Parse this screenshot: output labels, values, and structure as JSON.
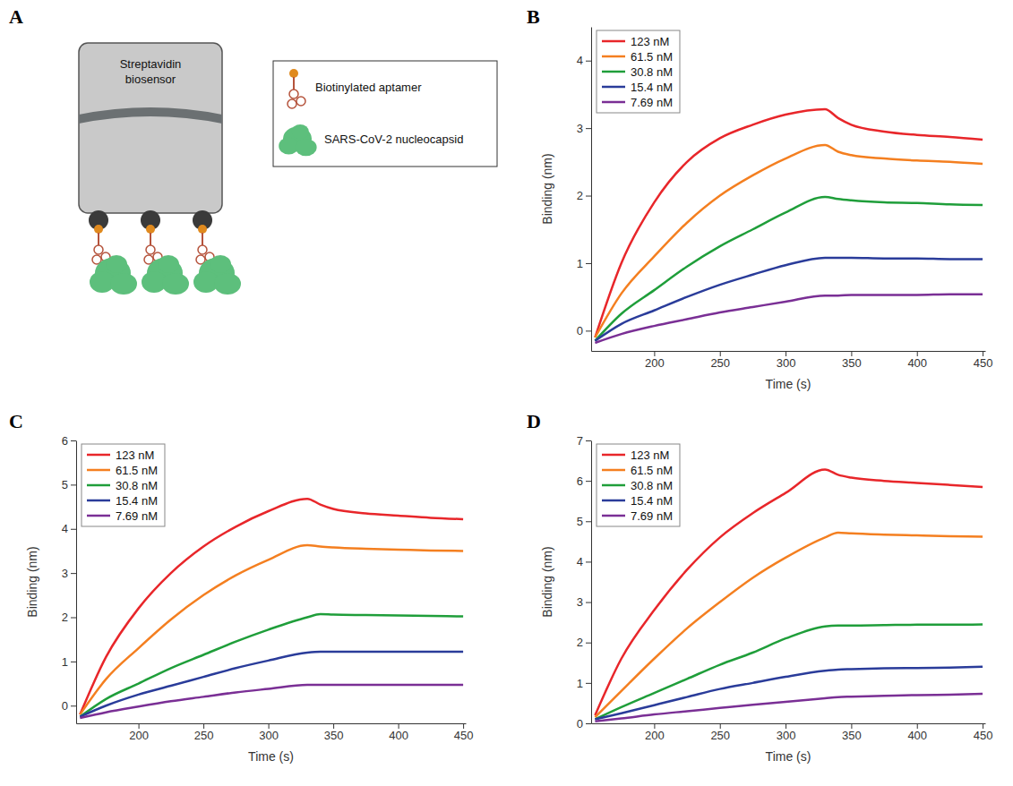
{
  "panel_labels": [
    "A",
    "B",
    "C",
    "D"
  ],
  "diagram": {
    "sensor_label": "Streptavidin biosensor",
    "legend": [
      {
        "label": "Biotinylated aptamer"
      },
      {
        "label": "SARS-CoV-2 nucleocapsid"
      }
    ]
  },
  "chart_data": [
    {
      "type": "line",
      "x_label": "Time (s)",
      "y_label": "Binding (nm)",
      "legend": "upper left",
      "x": [
        155,
        175,
        200,
        225,
        250,
        275,
        300,
        330,
        340,
        350,
        375,
        400,
        425,
        450
      ],
      "xlim": [
        152,
        452
      ],
      "xticks": [
        200,
        250,
        300,
        350,
        400,
        450
      ],
      "ylim": [
        -0.3,
        4.5
      ],
      "yticks": [
        0,
        1,
        2,
        3,
        4
      ],
      "series": [
        {
          "name": "123 nM",
          "color": "#e8262a",
          "values": [
            -0.1,
            1.0,
            1.9,
            2.5,
            2.85,
            3.05,
            3.2,
            3.28,
            3.15,
            3.05,
            2.95,
            2.9,
            2.87,
            2.83
          ]
        },
        {
          "name": "61.5 nM",
          "color": "#f47f20",
          "values": [
            -0.1,
            0.55,
            1.1,
            1.6,
            2.0,
            2.3,
            2.55,
            2.75,
            2.65,
            2.6,
            2.55,
            2.52,
            2.5,
            2.47
          ]
        },
        {
          "name": "30.8 nM",
          "color": "#1f9e3a",
          "values": [
            -0.15,
            0.25,
            0.6,
            0.95,
            1.25,
            1.5,
            1.75,
            1.98,
            1.95,
            1.93,
            1.9,
            1.89,
            1.87,
            1.86
          ]
        },
        {
          "name": "15.4 nM",
          "color": "#2a3c9a",
          "values": [
            -0.15,
            0.1,
            0.3,
            0.5,
            0.68,
            0.83,
            0.97,
            1.08,
            1.08,
            1.08,
            1.07,
            1.07,
            1.06,
            1.06
          ]
        },
        {
          "name": "7.69 nM",
          "color": "#7a2f95",
          "values": [
            -0.18,
            -0.05,
            0.07,
            0.17,
            0.27,
            0.35,
            0.43,
            0.52,
            0.52,
            0.53,
            0.53,
            0.53,
            0.54,
            0.54
          ]
        }
      ]
    },
    {
      "type": "line",
      "x_label": "Time (s)",
      "y_label": "Binding (nm)",
      "legend": "upper left",
      "x": [
        155,
        175,
        200,
        225,
        250,
        275,
        300,
        330,
        340,
        350,
        375,
        400,
        425,
        450
      ],
      "xlim": [
        152,
        452
      ],
      "xticks": [
        200,
        250,
        300,
        350,
        400,
        450
      ],
      "ylim": [
        -0.4,
        6
      ],
      "yticks": [
        0,
        1,
        2,
        3,
        4,
        5,
        6
      ],
      "series": [
        {
          "name": "123 nM",
          "color": "#e8262a",
          "values": [
            -0.2,
            1.1,
            2.2,
            3.0,
            3.6,
            4.05,
            4.4,
            4.68,
            4.55,
            4.45,
            4.35,
            4.3,
            4.25,
            4.22
          ]
        },
        {
          "name": "61.5 nM",
          "color": "#f47f20",
          "values": [
            -0.2,
            0.6,
            1.3,
            1.95,
            2.5,
            2.95,
            3.3,
            3.63,
            3.6,
            3.58,
            3.55,
            3.53,
            3.51,
            3.5
          ]
        },
        {
          "name": "30.8 nM",
          "color": "#1f9e3a",
          "values": [
            -0.25,
            0.15,
            0.5,
            0.85,
            1.15,
            1.45,
            1.72,
            2.0,
            2.07,
            2.06,
            2.05,
            2.04,
            2.03,
            2.02
          ]
        },
        {
          "name": "15.4 nM",
          "color": "#2a3c9a",
          "values": [
            -0.25,
            0.0,
            0.25,
            0.45,
            0.65,
            0.85,
            1.02,
            1.2,
            1.22,
            1.22,
            1.22,
            1.22,
            1.22,
            1.22
          ]
        },
        {
          "name": "7.69 nM",
          "color": "#7a2f95",
          "values": [
            -0.28,
            -0.15,
            -0.02,
            0.1,
            0.2,
            0.3,
            0.38,
            0.47,
            0.47,
            0.47,
            0.47,
            0.47,
            0.47,
            0.47
          ]
        }
      ]
    },
    {
      "type": "line",
      "x_label": "Time (s)",
      "y_label": "Binding (nm)",
      "legend": "upper left",
      "x": [
        155,
        175,
        200,
        225,
        250,
        275,
        300,
        330,
        340,
        350,
        375,
        400,
        425,
        450
      ],
      "xlim": [
        152,
        452
      ],
      "xticks": [
        200,
        250,
        300,
        350,
        400,
        450
      ],
      "ylim": [
        0,
        7
      ],
      "yticks": [
        0,
        1,
        2,
        3,
        4,
        5,
        6,
        7
      ],
      "series": [
        {
          "name": "123 nM",
          "color": "#e8262a",
          "values": [
            0.2,
            1.6,
            2.8,
            3.8,
            4.6,
            5.2,
            5.7,
            6.28,
            6.15,
            6.08,
            6.0,
            5.95,
            5.9,
            5.85
          ]
        },
        {
          "name": "61.5 nM",
          "color": "#f47f20",
          "values": [
            0.15,
            0.8,
            1.6,
            2.35,
            3.0,
            3.6,
            4.1,
            4.6,
            4.72,
            4.7,
            4.67,
            4.65,
            4.63,
            4.62
          ]
        },
        {
          "name": "30.8 nM",
          "color": "#1f9e3a",
          "values": [
            0.1,
            0.4,
            0.75,
            1.1,
            1.45,
            1.75,
            2.1,
            2.4,
            2.42,
            2.42,
            2.43,
            2.44,
            2.44,
            2.45
          ]
        },
        {
          "name": "15.4 nM",
          "color": "#2a3c9a",
          "values": [
            0.1,
            0.25,
            0.45,
            0.65,
            0.85,
            1.0,
            1.15,
            1.3,
            1.33,
            1.34,
            1.36,
            1.37,
            1.38,
            1.4
          ]
        },
        {
          "name": "7.69 nM",
          "color": "#7a2f95",
          "values": [
            0.05,
            0.12,
            0.22,
            0.3,
            0.38,
            0.46,
            0.53,
            0.62,
            0.65,
            0.66,
            0.68,
            0.7,
            0.71,
            0.73
          ]
        }
      ]
    }
  ]
}
